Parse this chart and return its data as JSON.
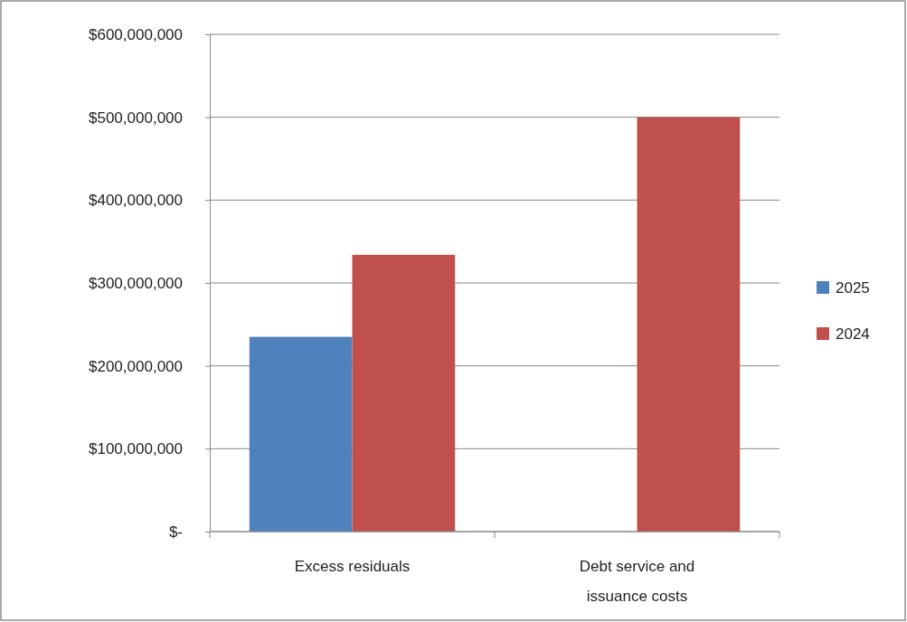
{
  "chart_data": {
    "type": "bar",
    "categories": [
      "Excess residuals",
      "Debt service and issuance costs"
    ],
    "series": [
      {
        "name": "2025",
        "color": "#4f81bd",
        "values": [
          235000000,
          null
        ]
      },
      {
        "name": "2024",
        "color": "#c0504d",
        "values": [
          334000000,
          500000000
        ]
      }
    ],
    "ylim": [
      0,
      600000000
    ],
    "yticks": [
      {
        "value": 0,
        "label": "$-"
      },
      {
        "value": 100000000,
        "label": "$100,000,000"
      },
      {
        "value": 200000000,
        "label": "$200,000,000"
      },
      {
        "value": 300000000,
        "label": "$300,000,000"
      },
      {
        "value": 400000000,
        "label": "$400,000,000"
      },
      {
        "value": 500000000,
        "label": "$500,000,000"
      },
      {
        "value": 600000000,
        "label": "$600,000,000"
      }
    ],
    "grid": "y",
    "legend": "right"
  }
}
